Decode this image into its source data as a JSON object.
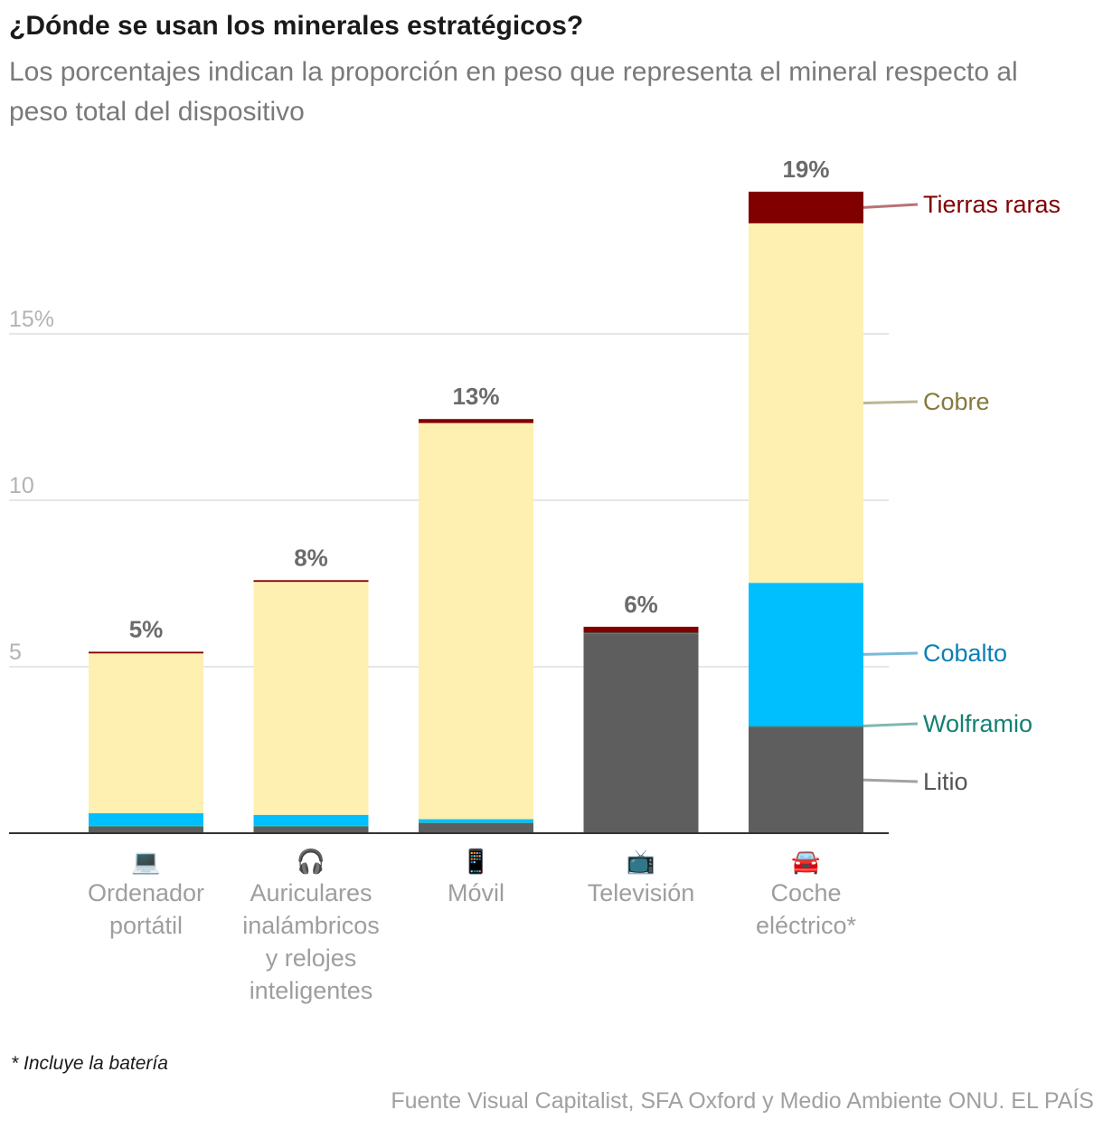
{
  "title": "¿Dónde se usan los minerales estratégicos?",
  "subtitle": "Los porcentajes indican la proporción en peso que representa el mineral respecto al peso total del dispositivo",
  "footnote": "* Incluye la batería",
  "source": "Fuente Visual Capitalist, SFA Oxford y Medio Ambiente ONU. EL PAÍS",
  "chart_data": {
    "type": "bar",
    "stacked": true,
    "ylim": [
      0,
      19.5
    ],
    "yticks": [
      {
        "value": 5,
        "label": "5"
      },
      {
        "value": 10,
        "label": "10"
      },
      {
        "value": 15,
        "label": "15%"
      }
    ],
    "grid": true,
    "categories": [
      {
        "label": "Ordenador portátil",
        "lines": [
          "Ordenador",
          "portátil"
        ],
        "icon": "laptop-icon",
        "glyph": "💻",
        "total_label": "5%"
      },
      {
        "label": "Auriculares inalámbricos y relojes inteligentes",
        "lines": [
          "Auriculares",
          "inalámbricos",
          "y relojes",
          "inteligentes"
        ],
        "icon": "headphones-icon",
        "glyph": "🎧",
        "total_label": "8%"
      },
      {
        "label": "Móvil",
        "lines": [
          "Móvil"
        ],
        "icon": "mobile-phone-icon",
        "glyph": "📱",
        "total_label": "13%"
      },
      {
        "label": "Televisión",
        "lines": [
          "Televisión"
        ],
        "icon": "television-icon",
        "glyph": "📺",
        "total_label": "6%"
      },
      {
        "label": "Coche eléctrico*",
        "lines": [
          "Coche",
          "eléctrico*"
        ],
        "icon": "car-icon",
        "glyph": "🚘",
        "total_label": "19%"
      }
    ],
    "series": [
      {
        "name": "Litio",
        "color": "#5e5e5e",
        "label_color": "#555555",
        "values": [
          0.2,
          0.2,
          0.3,
          6.0,
          3.2
        ]
      },
      {
        "name": "Wolframio",
        "color": "#1a9a8a",
        "label_color": "#138073",
        "values": [
          0.02,
          0.02,
          0.02,
          0.02,
          0.02
        ]
      },
      {
        "name": "Cobalto",
        "color": "#00bfff",
        "label_color": "#0b7fb5",
        "values": [
          0.38,
          0.33,
          0.1,
          0.0,
          4.3
        ]
      },
      {
        "name": "Cobre",
        "color": "#fdf0b0",
        "label_color": "#857a3c",
        "values": [
          4.8,
          7.0,
          11.9,
          0.0,
          10.8
        ]
      },
      {
        "name": "Tierras raras",
        "color": "#800000",
        "label_color": "#800000",
        "values": [
          0.05,
          0.05,
          0.12,
          0.18,
          0.95
        ]
      }
    ]
  }
}
